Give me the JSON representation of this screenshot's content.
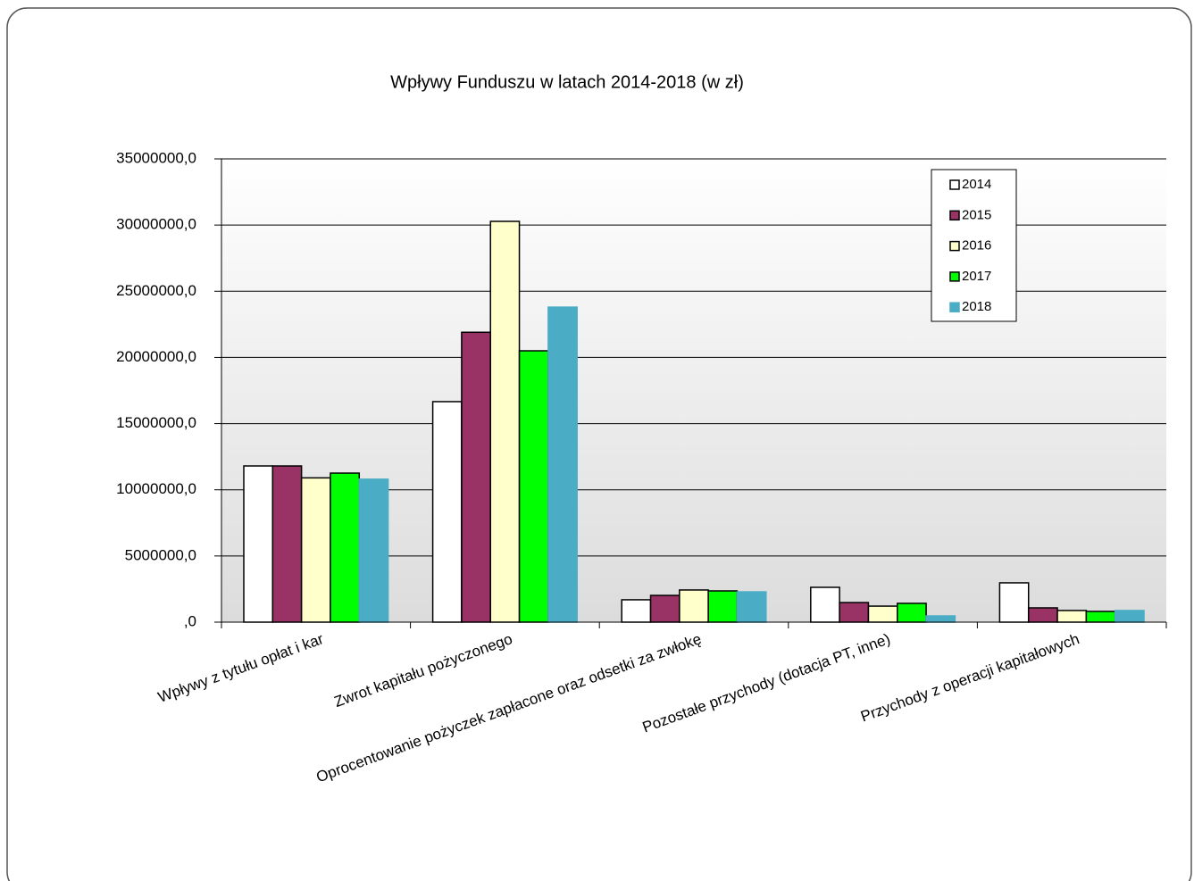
{
  "chart_data": {
    "type": "bar",
    "title": "Wpływy Funduszu w latach 2014-2018 (w zł)",
    "categories": [
      "Wpływy z tytułu opłat i kar",
      "Zwrot kapitału pożyczonego",
      "Oprocentowanie pożyczek  zapłacone oraz odsetki za zwłokę",
      "Pozostałe przychody  (dotacja PT, inne)",
      "Przychody z operacji kapitałowych"
    ],
    "series": [
      {
        "name": "2014",
        "color": "#ffffff",
        "edgecolor": "#000000",
        "values": [
          11800000,
          16660000,
          1690000,
          2630000,
          2970000
        ]
      },
      {
        "name": "2015",
        "color": "#993366",
        "edgecolor": "#000000",
        "values": [
          11800000,
          21900000,
          2020000,
          1480000,
          1080000
        ]
      },
      {
        "name": "2016",
        "color": "#ffffcc",
        "edgecolor": "#000000",
        "values": [
          10900000,
          30280000,
          2430000,
          1210000,
          880000
        ]
      },
      {
        "name": "2017",
        "color": "#00ff00",
        "edgecolor": "#000000",
        "values": [
          11260000,
          20500000,
          2360000,
          1420000,
          810000
        ]
      },
      {
        "name": "2018",
        "color": "#4bacc6",
        "edgecolor": "#4bacc6",
        "values": [
          10800000,
          23800000,
          2290000,
          470000,
          880000
        ]
      }
    ],
    "ylim": [
      0,
      35000000
    ],
    "yticks": [
      {
        "value": 0,
        "label": ",0"
      },
      {
        "value": 5000000,
        "label": "5000000,0"
      },
      {
        "value": 10000000,
        "label": "10000000,0"
      },
      {
        "value": 15000000,
        "label": "15000000,0"
      },
      {
        "value": 20000000,
        "label": "20000000,0"
      },
      {
        "value": 25000000,
        "label": "25000000,0"
      },
      {
        "value": 30000000,
        "label": "30000000,0"
      },
      {
        "value": 35000000,
        "label": "35000000,0"
      }
    ],
    "grid": true,
    "legend": "upper right"
  }
}
